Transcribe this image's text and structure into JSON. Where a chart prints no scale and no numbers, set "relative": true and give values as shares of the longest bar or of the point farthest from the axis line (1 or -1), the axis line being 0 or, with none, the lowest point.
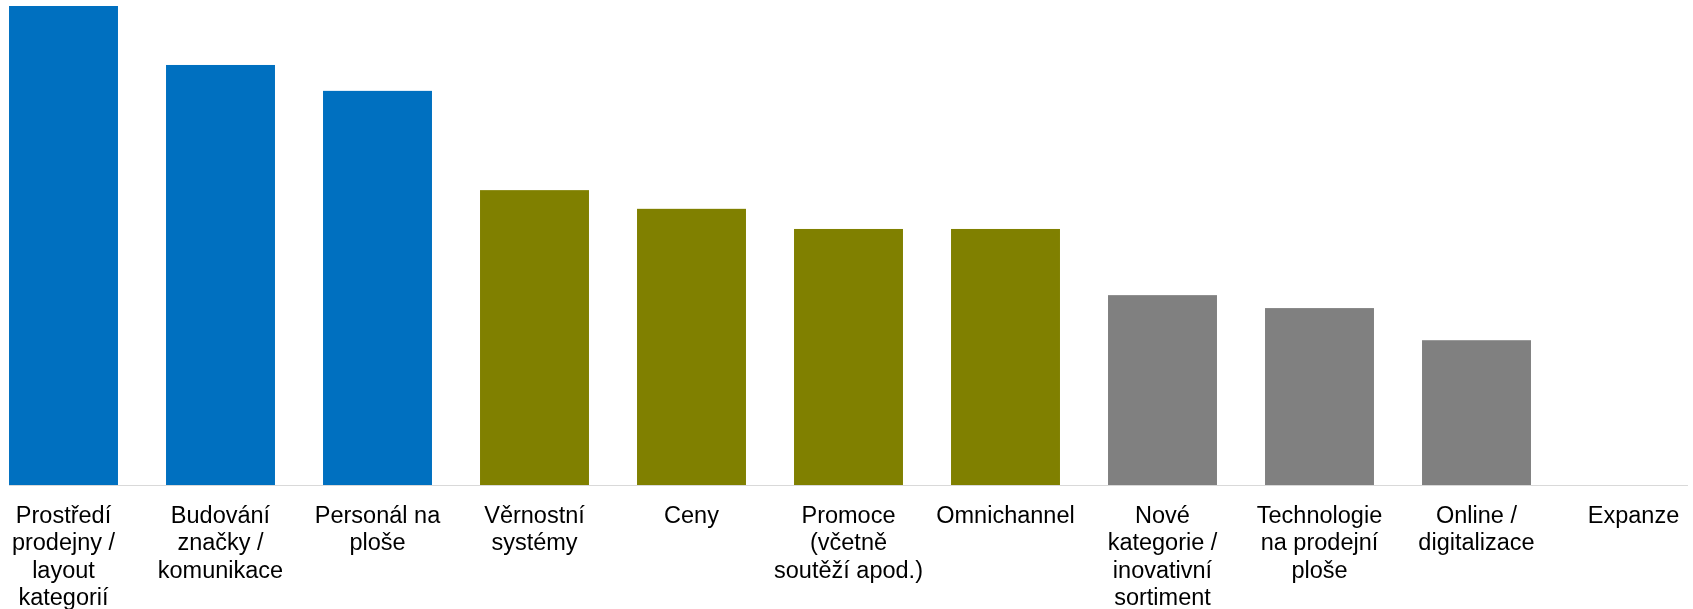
{
  "chart_data": {
    "type": "bar",
    "relative": true,
    "categories": [
      "Prostředí prodejny / layout kategorií",
      "Budování značky / komunikace",
      "Personál na ploše",
      "Věrnostní systémy",
      "Ceny",
      "Promoce (včetně soutěží apod.)",
      "Omnichannel",
      "Nové kategorie / inovativní sortiment",
      "Technologie na prodejní ploše",
      "Online / digitalizace",
      "Expanze"
    ],
    "values": [
      1,
      0.877,
      0.823,
      0.616,
      0.577,
      0.535,
      0.535,
      0.397,
      0.37,
      0.303,
      0
    ],
    "colors": [
      "#0070c0",
      "#0070c0",
      "#0070c0",
      "#808000",
      "#808000",
      "#808000",
      "#808000",
      "#808080",
      "#808080",
      "#808080",
      "#808080"
    ]
  }
}
